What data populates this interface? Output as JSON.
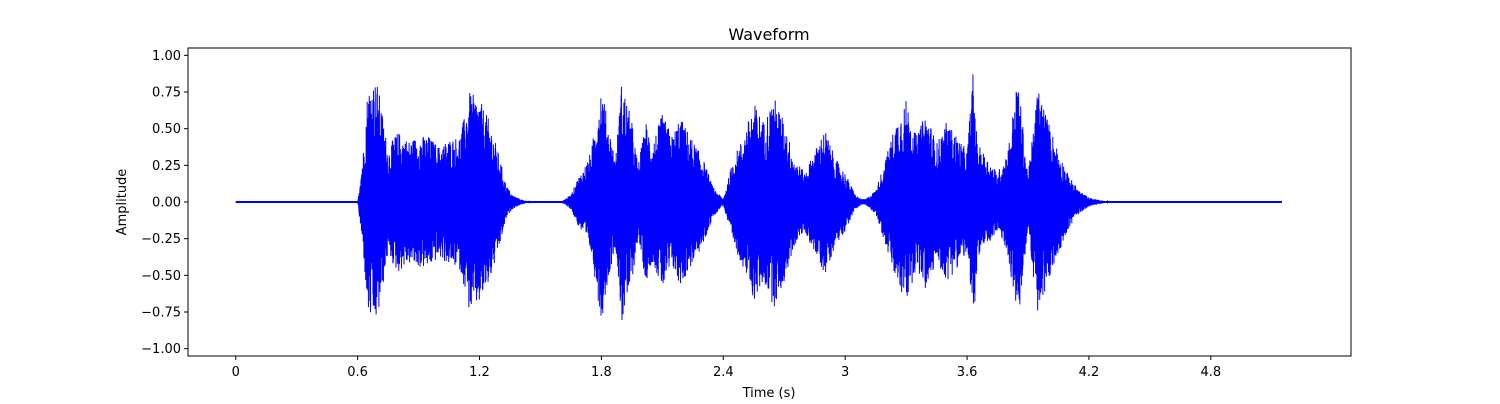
{
  "chart_data": {
    "type": "line",
    "title": "Waveform",
    "xlabel": "Time (s)",
    "ylabel": "Amplitude",
    "xlim": [
      -0.235,
      5.49
    ],
    "ylim": [
      -1.05,
      1.05
    ],
    "x_ticks": [
      0,
      0.6,
      1.2,
      1.8,
      2.4,
      3,
      3.6,
      4.2,
      4.8
    ],
    "x_tick_labels": [
      "0",
      "0.6",
      "1.2",
      "1.8",
      "2.4",
      "3",
      "3.6",
      "4.2",
      "4.8"
    ],
    "y_ticks": [
      1.0,
      0.75,
      0.5,
      0.25,
      0.0,
      -0.25,
      -0.5,
      -0.75,
      -1.0
    ],
    "y_tick_labels": [
      "1.00",
      "0.75",
      "0.50",
      "0.25",
      "0.00",
      "−0.25",
      "−0.50",
      "−0.75",
      "−1.00"
    ],
    "grid": false,
    "line_color": "#0000ff",
    "series": [
      {
        "envelope_time_s": [
          0,
          0.6,
          0.63,
          0.65,
          0.68,
          0.7,
          0.72,
          0.75,
          0.78,
          0.8,
          0.85,
          0.9,
          0.95,
          1.0,
          1.05,
          1.1,
          1.13,
          1.15,
          1.2,
          1.25,
          1.3,
          1.33,
          1.36,
          1.4,
          1.45,
          1.5,
          1.55,
          1.6,
          1.65,
          1.68,
          1.72,
          1.75,
          1.8,
          1.83,
          1.87,
          1.9,
          1.95,
          1.98,
          2.02,
          2.05,
          2.1,
          2.15,
          2.18,
          2.2,
          2.25,
          2.3,
          2.35,
          2.4,
          2.45,
          2.5,
          2.55,
          2.6,
          2.65,
          2.7,
          2.75,
          2.8,
          2.85,
          2.9,
          2.95,
          3.0,
          3.05,
          3.08,
          3.1,
          3.15,
          3.2,
          3.25,
          3.3,
          3.35,
          3.4,
          3.45,
          3.5,
          3.55,
          3.6,
          3.63,
          3.65,
          3.7,
          3.75,
          3.8,
          3.85,
          3.9,
          3.95,
          4.0,
          4.05,
          4.1,
          4.15,
          4.2,
          4.3,
          4.5,
          4.8,
          5.0,
          5.1,
          5.15
        ],
        "envelope_amplitude": [
          0.0,
          0.0,
          0.38,
          0.78,
          0.83,
          0.8,
          0.62,
          0.35,
          0.45,
          0.48,
          0.42,
          0.45,
          0.45,
          0.38,
          0.43,
          0.45,
          0.6,
          0.75,
          0.7,
          0.55,
          0.3,
          0.12,
          0.05,
          0.02,
          0.0,
          0.0,
          0.0,
          0.0,
          0.05,
          0.15,
          0.25,
          0.35,
          0.82,
          0.55,
          0.3,
          0.83,
          0.55,
          0.25,
          0.55,
          0.4,
          0.6,
          0.45,
          0.57,
          0.55,
          0.42,
          0.3,
          0.1,
          0.02,
          0.3,
          0.45,
          0.68,
          0.55,
          0.72,
          0.55,
          0.3,
          0.2,
          0.35,
          0.5,
          0.3,
          0.2,
          0.05,
          0.02,
          0.02,
          0.08,
          0.3,
          0.55,
          0.7,
          0.45,
          0.62,
          0.4,
          0.55,
          0.45,
          0.35,
          0.9,
          0.4,
          0.3,
          0.2,
          0.35,
          0.85,
          0.18,
          0.8,
          0.55,
          0.35,
          0.18,
          0.08,
          0.03,
          0.0,
          0.0,
          0.0,
          0.0,
          0.0,
          0.0
        ]
      }
    ]
  }
}
